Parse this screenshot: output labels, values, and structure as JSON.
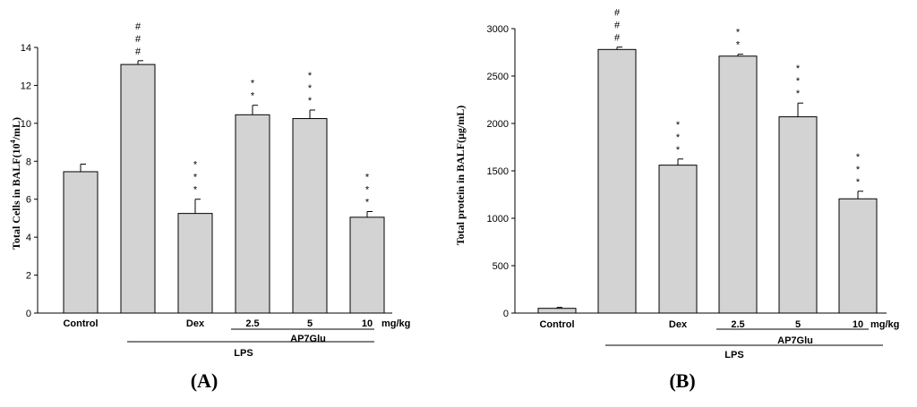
{
  "chart_data": [
    {
      "type": "bar",
      "panel": "A",
      "panel_open": "(",
      "panel_close": ")",
      "categories": [
        "Control",
        "",
        "Dex",
        "2.5",
        "5",
        "10"
      ],
      "unit_label": "mg/kg",
      "values": [
        7.45,
        13.1,
        5.25,
        10.45,
        10.25,
        5.05
      ],
      "errors": [
        0.4,
        0.2,
        0.75,
        0.5,
        0.45,
        0.3
      ],
      "significance": [
        "",
        "###",
        "***",
        "**",
        "***",
        "***"
      ],
      "ylabel_main": "Total Cells in BALF(10",
      "ylabel_sup": "4",
      "ylabel_end": "/mL)",
      "ylim": [
        0,
        14
      ],
      "yticks": [
        "0",
        "2",
        "4",
        "6",
        "8",
        "10",
        "12",
        "14"
      ],
      "group_labels": {
        "ap7glu": "AP7Glu",
        "lps": "LPS"
      },
      "bar_color": "#d3d3d3"
    },
    {
      "type": "bar",
      "panel": "B",
      "panel_open": "(",
      "panel_close": ")",
      "categories": [
        "Control",
        "",
        "Dex",
        "2.5",
        "5",
        "10"
      ],
      "unit_label": "mg/kg",
      "values": [
        50,
        2780,
        1560,
        2710,
        2070,
        1205
      ],
      "errors": [
        10,
        25,
        65,
        20,
        145,
        80
      ],
      "significance": [
        "",
        "###",
        "***",
        "**",
        "***",
        "***"
      ],
      "ylabel_main": "Total protein in BALF(μg/mL)",
      "ylim": [
        0,
        3000
      ],
      "yticks": [
        "0",
        "500",
        "1000",
        "1500",
        "2000",
        "2500",
        "3000"
      ],
      "group_labels": {
        "ap7glu": "AP7Glu",
        "lps": "LPS"
      },
      "bar_color": "#d3d3d3"
    }
  ]
}
